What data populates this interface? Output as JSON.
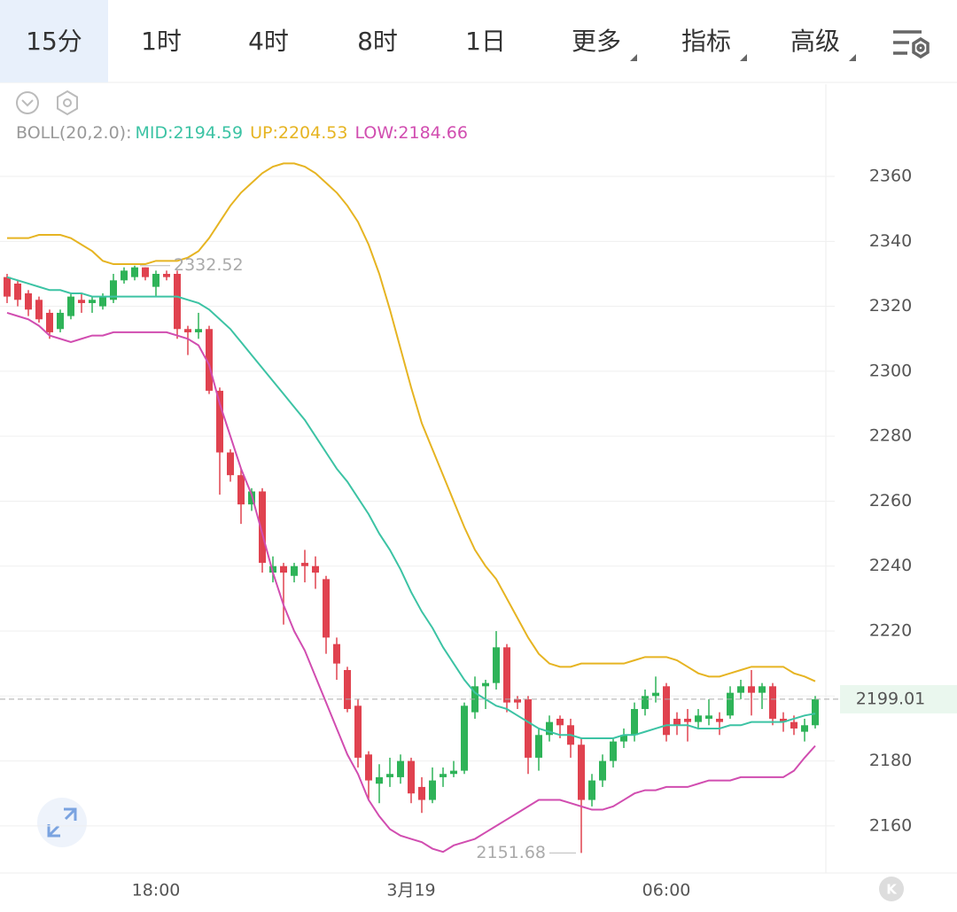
{
  "tabs": [
    "15分",
    "1时",
    "4时",
    "8时",
    "1日",
    "更多",
    "指标",
    "高级"
  ],
  "active_tab": 0,
  "dropdown_tabs": [
    5,
    6,
    7
  ],
  "chart_data": {
    "type": "candlestick",
    "indicator": "BOLL(20,2.0):",
    "categories": [
      null,
      null,
      null,
      null,
      null,
      null,
      null,
      null,
      null,
      null,
      null,
      null,
      null,
      null,
      "18:00",
      null,
      null,
      null,
      null,
      null,
      null,
      null,
      null,
      null,
      null,
      null,
      null,
      null,
      null,
      null,
      null,
      null,
      null,
      null,
      null,
      null,
      null,
      null,
      "3月19",
      null,
      null,
      null,
      null,
      null,
      null,
      null,
      null,
      null,
      null,
      null,
      null,
      null,
      null,
      null,
      null,
      null,
      null,
      null,
      null,
      null,
      null,
      null,
      "06:00",
      null,
      null,
      null,
      null,
      null,
      null,
      null,
      null,
      null,
      null,
      null,
      null,
      null,
      null
    ],
    "open": [
      2329,
      2327,
      2324,
      2322,
      2318,
      2313,
      2317,
      2322,
      2321,
      2320,
      2322,
      2328,
      2329,
      2332,
      2326,
      2330,
      2330,
      2313,
      2312,
      2313,
      2294,
      2275,
      2268,
      2259,
      2263,
      2238,
      2240,
      2237,
      2241,
      2240,
      2236,
      2216,
      2208,
      2197,
      2182,
      2173,
      2175,
      2175,
      2180,
      2172,
      2168,
      2175,
      2176,
      2177,
      2195,
      2203,
      2204,
      2215,
      2199,
      2199,
      2181,
      2188,
      2193,
      2191,
      2185,
      2168,
      2174,
      2180,
      2186,
      2188,
      2196,
      2200,
      2203,
      2193,
      2193,
      2192,
      2193,
      2193,
      2194,
      2201,
      2203,
      2201,
      2203,
      2193,
      2192,
      2189,
      2191
    ],
    "high": [
      2330,
      2328,
      2325,
      2323,
      2319,
      2319,
      2324,
      2324,
      2323,
      2324,
      2330,
      2332,
      2332.52,
      2332,
      2331,
      2331,
      2331,
      2314,
      2318,
      2314,
      2295,
      2276,
      2270,
      2264,
      2264,
      2243,
      2241,
      2241,
      2245,
      2243,
      2237,
      2218,
      2209,
      2199,
      2183,
      2179,
      2181,
      2182,
      2181,
      2175,
      2178,
      2178,
      2180,
      2198,
      2206,
      2205,
      2220,
      2216,
      2200,
      2200,
      2190,
      2194,
      2194,
      2193,
      2187,
      2176,
      2182,
      2187,
      2190,
      2198,
      2202,
      2206,
      2204,
      2195,
      2196,
      2196,
      2199,
      2195,
      2203,
      2205,
      2208,
      2204,
      2204,
      2195,
      2194,
      2193,
      2200
    ],
    "low": [
      2321,
      2320,
      2317,
      2315,
      2310,
      2312,
      2316,
      2318,
      2318,
      2319,
      2321,
      2327,
      2328,
      2328,
      2323,
      2328,
      2310,
      2305,
      2310,
      2293,
      2262,
      2266,
      2253,
      2257,
      2238,
      2235,
      2222,
      2235,
      2235,
      2233,
      2213,
      2205,
      2195,
      2178,
      2168,
      2167,
      2172,
      2173,
      2167,
      2164,
      2167,
      2172,
      2175,
      2176,
      2193,
      2196,
      2202,
      2195,
      2196,
      2176,
      2177,
      2186,
      2187,
      2181,
      2151.68,
      2166,
      2172,
      2178,
      2184,
      2186,
      2194,
      2198,
      2186,
      2188,
      2186,
      2190,
      2191,
      2188,
      2193,
      2199,
      2194,
      2196,
      2191,
      2189,
      2188,
      2186,
      2190
    ],
    "close": [
      2323,
      2322,
      2319,
      2316,
      2312,
      2318,
      2323,
      2321,
      2322,
      2323,
      2328,
      2331,
      2332,
      2329,
      2330,
      2329,
      2313,
      2312,
      2313,
      2294,
      2275,
      2268,
      2259,
      2263,
      2241,
      2240,
      2238,
      2240,
      2240,
      2238,
      2218,
      2210,
      2196,
      2181,
      2174,
      2175,
      2176,
      2180,
      2170,
      2168,
      2174,
      2176,
      2177,
      2197,
      2203,
      2204,
      2215,
      2198,
      2198,
      2181,
      2188,
      2192,
      2191,
      2185,
      2168,
      2174,
      2180,
      2186,
      2188,
      2196,
      2200,
      2201,
      2188,
      2191,
      2192,
      2194,
      2194,
      2192,
      2201,
      2203,
      2201,
      2203,
      2193,
      2192,
      2190,
      2191,
      2199.01
    ],
    "up_color": "#2eb358",
    "down_color": "#e0424f",
    "series": [
      {
        "name": "MID:",
        "color": "#3cc3a4",
        "values": [
          2329,
          2328,
          2327,
          2326,
          2325,
          2325,
          2324,
          2324,
          2323,
          2323,
          2323,
          2323,
          2323,
          2323,
          2323,
          2323,
          2323,
          2322,
          2321,
          2319,
          2316,
          2313,
          2309,
          2305,
          2301,
          2297,
          2293,
          2289,
          2285,
          2280,
          2275,
          2270,
          2266,
          2261,
          2256,
          2250,
          2245,
          2239,
          2232,
          2226,
          2221,
          2215,
          2210,
          2205,
          2201,
          2199,
          2197,
          2196,
          2194,
          2192,
          2190,
          2189,
          2188,
          2188,
          2187,
          2187,
          2187,
          2187,
          2188,
          2188,
          2189,
          2190,
          2191,
          2191,
          2191,
          2190,
          2190,
          2190,
          2191,
          2191,
          2192,
          2192,
          2192,
          2192,
          2193,
          2194,
          2194.59
        ]
      },
      {
        "name": "UP:",
        "color": "#e6b422",
        "values": [
          2341,
          2341,
          2341,
          2342,
          2342,
          2342,
          2341,
          2339,
          2337,
          2334,
          2333,
          2333,
          2333,
          2333,
          2334,
          2334,
          2334,
          2335,
          2337,
          2341,
          2346,
          2351,
          2355,
          2358,
          2361,
          2363,
          2364,
          2364,
          2363,
          2361,
          2358,
          2355,
          2351,
          2346,
          2339,
          2330,
          2319,
          2307,
          2295,
          2284,
          2276,
          2268,
          2260,
          2252,
          2245,
          2240,
          2236,
          2230,
          2224,
          2218,
          2213,
          2210,
          2209,
          2209,
          2210,
          2210,
          2210,
          2210,
          2210,
          2211,
          2212,
          2212,
          2212,
          2211,
          2209,
          2207,
          2206,
          2206,
          2207,
          2208,
          2209,
          2209,
          2209,
          2209,
          2207,
          2206,
          2204.53
        ]
      },
      {
        "name": "LOW:",
        "color": "#d14db0",
        "values": [
          2318,
          2317,
          2316,
          2314,
          2311,
          2310,
          2309,
          2310,
          2311,
          2311,
          2312,
          2312,
          2312,
          2312,
          2312,
          2312,
          2311,
          2310,
          2308,
          2302,
          2290,
          2280,
          2270,
          2262,
          2250,
          2238,
          2228,
          2220,
          2214,
          2206,
          2198,
          2190,
          2182,
          2176,
          2168,
          2163,
          2159,
          2157,
          2156,
          2155,
          2153,
          2152,
          2154,
          2155,
          2156,
          2158,
          2160,
          2162,
          2164,
          2166,
          2168,
          2168,
          2168,
          2167,
          2166,
          2165,
          2165,
          2166,
          2168,
          2170,
          2171,
          2171,
          2172,
          2172,
          2172,
          2173,
          2174,
          2174,
          2174,
          2175,
          2175,
          2175,
          2175,
          2175,
          2177,
          2181,
          2184.66
        ]
      }
    ],
    "max_index": 12,
    "min_index": 54,
    "ylim": [
      2145.5,
      2388.4
    ],
    "yticks": [
      2160,
      2180,
      2200,
      2220,
      2240,
      2260,
      2280,
      2300,
      2320,
      2340,
      2360
    ],
    "grid": true
  }
}
